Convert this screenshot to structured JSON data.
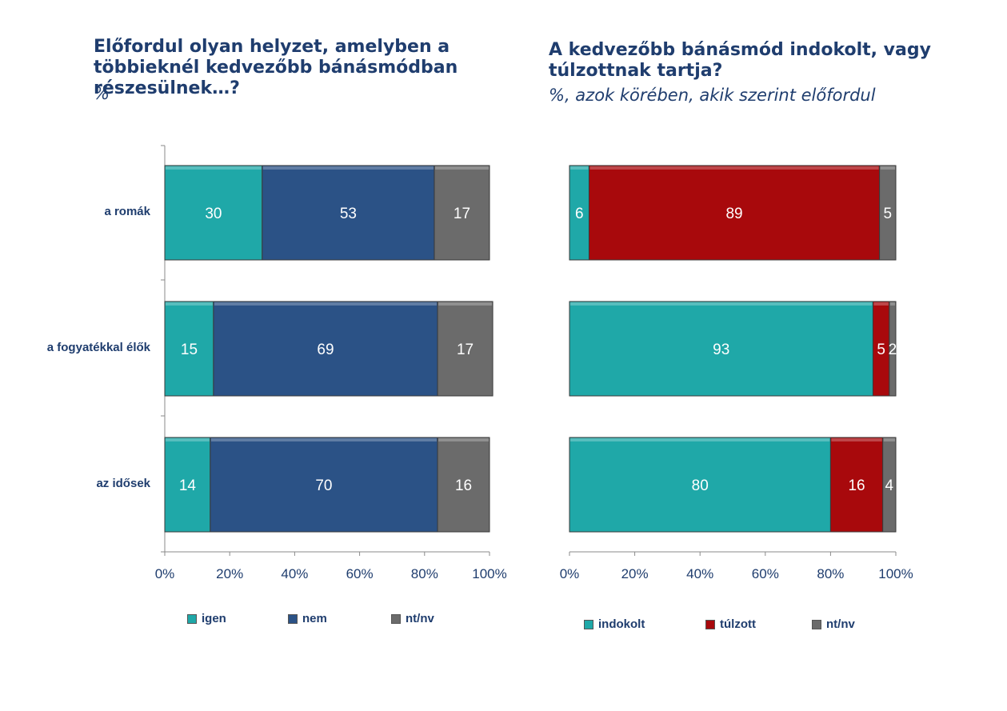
{
  "chart_data": [
    {
      "type": "bar",
      "orientation": "horizontal",
      "stacked": true,
      "title": "Előfordul olyan helyzet, amelyben a többieknél kedvezőbb bánásmódban részesülnek…?",
      "subtitle": "%",
      "categories": [
        "a romák",
        "a fogyatékkal élők",
        "az idősek"
      ],
      "series": [
        {
          "name": "igen",
          "color": "#1fa8a8",
          "values": [
            30,
            15,
            14
          ]
        },
        {
          "name": "nem",
          "color": "#2b5286",
          "values": [
            53,
            69,
            70
          ]
        },
        {
          "name": "nt/nv",
          "color": "#6b6b6b",
          "values": [
            17,
            17,
            16
          ]
        }
      ],
      "x_ticks": [
        "0%",
        "20%",
        "40%",
        "60%",
        "80%",
        "100%"
      ],
      "xlim": [
        0,
        100
      ],
      "legend_position": "bottom"
    },
    {
      "type": "bar",
      "orientation": "horizontal",
      "stacked": true,
      "title": "A kedvezőbb bánásmód indokolt, vagy túlzottnak tartja?",
      "subtitle": "%, azok körében, akik szerint előfordul",
      "categories": [
        "a romák",
        "a fogyatékkal élők",
        "az idősek"
      ],
      "series": [
        {
          "name": "indokolt",
          "color": "#1fa8a8",
          "values": [
            6,
            93,
            80
          ]
        },
        {
          "name": "túlzott",
          "color": "#a8090c",
          "values": [
            89,
            5,
            16
          ]
        },
        {
          "name": "nt/nv",
          "color": "#6b6b6b",
          "values": [
            5,
            2,
            4
          ]
        }
      ],
      "x_ticks": [
        "0%",
        "20%",
        "40%",
        "60%",
        "80%",
        "100%"
      ],
      "xlim": [
        0,
        100
      ],
      "legend_position": "bottom"
    }
  ]
}
